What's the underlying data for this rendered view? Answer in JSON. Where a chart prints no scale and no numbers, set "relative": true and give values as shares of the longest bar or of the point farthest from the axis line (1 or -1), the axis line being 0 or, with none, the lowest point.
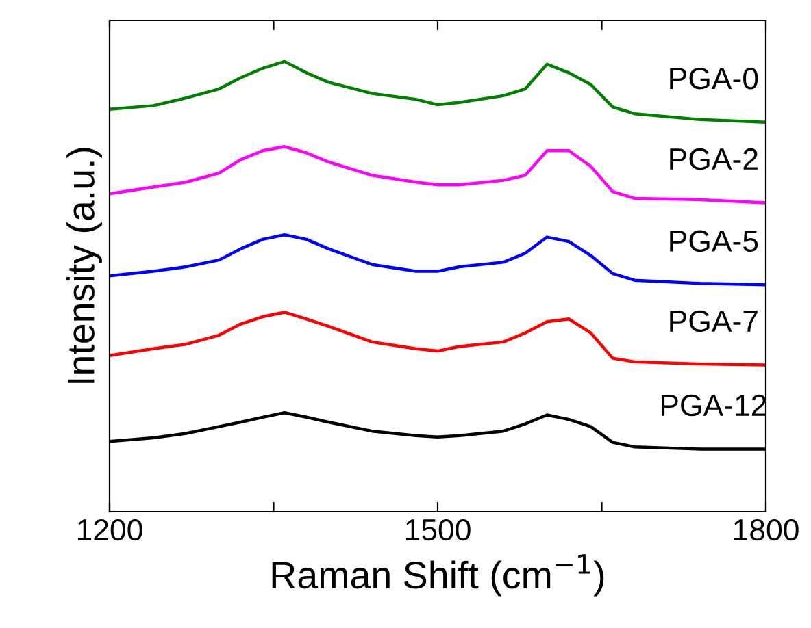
{
  "chart_data": {
    "type": "line",
    "relative": true,
    "xlabel": "Raman Shift (cm$^{−1}$)",
    "ylabel": "Intensity (a.u.)",
    "xlim": [
      1200,
      1800
    ],
    "xticks": [
      1200,
      {
        "value": 1350,
        "label": null
      },
      1500,
      {
        "value": 1650,
        "label": null
      },
      1800
    ],
    "grid": false,
    "legend": false,
    "marker": "none",
    "line_style": "solid",
    "x": [
      1200,
      1240,
      1270,
      1300,
      1320,
      1340,
      1360,
      1380,
      1400,
      1440,
      1480,
      1500,
      1520,
      1560,
      1580,
      1600,
      1620,
      1640,
      1660,
      1680,
      1740,
      1800
    ],
    "series": [
      {
        "name": "PGA-0",
        "color": "#008000",
        "values": [
          0.894,
          0.902,
          0.919,
          0.939,
          0.964,
          0.985,
          1.0,
          0.975,
          0.954,
          0.929,
          0.916,
          0.904,
          0.909,
          0.924,
          0.939,
          0.994,
          0.975,
          0.949,
          0.899,
          0.884,
          0.871,
          0.865
        ]
      },
      {
        "name": "PGA-2",
        "color": "#ff00ff",
        "values": [
          0.706,
          0.721,
          0.732,
          0.752,
          0.782,
          0.802,
          0.811,
          0.797,
          0.777,
          0.747,
          0.732,
          0.726,
          0.726,
          0.736,
          0.747,
          0.802,
          0.802,
          0.767,
          0.711,
          0.696,
          0.693,
          0.686
        ]
      },
      {
        "name": "PGA-5",
        "color": "#0000ff",
        "values": [
          0.524,
          0.534,
          0.544,
          0.559,
          0.584,
          0.605,
          0.615,
          0.605,
          0.584,
          0.549,
          0.534,
          0.534,
          0.544,
          0.554,
          0.574,
          0.61,
          0.6,
          0.569,
          0.529,
          0.514,
          0.507,
          0.504
        ]
      },
      {
        "name": "PGA-7",
        "color": "#ff0000",
        "values": [
          0.347,
          0.362,
          0.372,
          0.392,
          0.417,
          0.433,
          0.443,
          0.428,
          0.412,
          0.377,
          0.362,
          0.357,
          0.367,
          0.377,
          0.397,
          0.422,
          0.428,
          0.397,
          0.341,
          0.333,
          0.328,
          0.326
        ]
      },
      {
        "name": "PGA-12",
        "color": "#000000",
        "values": [
          0.156,
          0.164,
          0.174,
          0.189,
          0.199,
          0.21,
          0.22,
          0.21,
          0.199,
          0.179,
          0.169,
          0.166,
          0.169,
          0.179,
          0.195,
          0.215,
          0.205,
          0.189,
          0.154,
          0.144,
          0.139,
          0.139
        ]
      }
    ]
  }
}
